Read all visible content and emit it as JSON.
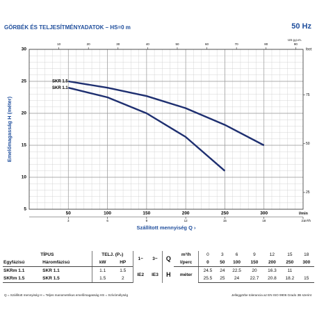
{
  "header": {
    "title": "GÖRBÉK ÉS TELJESÍTMÉNYADATOK – HS=0 m",
    "frequency": "50 Hz"
  },
  "chart_data": {
    "type": "line",
    "y_label": "Emelőmagasság H (méter)",
    "x_label": "Szállított mennyiség Q ›",
    "x_unit": "l/min",
    "xlim": [
      0,
      350
    ],
    "xticks": [
      50,
      100,
      150,
      200,
      250,
      300
    ],
    "ylim": [
      5,
      30
    ],
    "yticks": [
      5,
      10,
      15,
      20,
      25,
      30
    ],
    "y2_label": "feet",
    "y2lim": [
      16.4,
      98.4
    ],
    "y2ticks": [
      25,
      50,
      75
    ],
    "x2_label": "US g.p.m.",
    "x2lim": [
      0,
      92.5
    ],
    "x2ticks": [
      10,
      20,
      30,
      40,
      50,
      60,
      70,
      80,
      90
    ],
    "x3_label": "m³/h",
    "x3lim": [
      0,
      21
    ],
    "x3ticks": [
      3,
      6,
      9,
      12,
      15,
      18,
      21
    ],
    "grid": true,
    "series": [
      {
        "name": "SKR 1.5",
        "color": "#1e2f70",
        "x": [
          50,
          100,
          150,
          200,
          250,
          300
        ],
        "values": [
          25,
          24,
          22.7,
          20.8,
          18.2,
          15
        ]
      },
      {
        "name": "SKR 1.1",
        "color": "#1e2f70",
        "x": [
          50,
          100,
          150,
          200,
          250
        ],
        "values": [
          24,
          22.5,
          20,
          16.3,
          11
        ]
      }
    ]
  },
  "table": {
    "type": "TÍPUS",
    "single_phase": "Egyfázisú",
    "three_phase": "Háromfázisú",
    "power": "TELJ. (P₂)",
    "kw": "kW",
    "hp": "HP",
    "phase1": "1~",
    "phase3": "3~",
    "q": "Q",
    "q_unit1": "m³/h",
    "q_unit2": "l/perc",
    "h": "H",
    "h_unit": "méter",
    "efficiency": [
      "IE2",
      "IE3"
    ],
    "q_m3h": [
      0,
      3,
      6,
      9,
      12,
      15,
      18
    ],
    "q_lpm": [
      0,
      50,
      100,
      150,
      200,
      250,
      300
    ],
    "rows": [
      {
        "single": "SKRm 1.1",
        "three": "SKR 1.1",
        "kw": 1.1,
        "hp": 1.5,
        "h": [
          24.5,
          24,
          22.5,
          20,
          16.3,
          11
        ]
      },
      {
        "single": "SKRm 1.5",
        "three": "SKR 1.5",
        "kw": 1.5,
        "hp": 2,
        "h": [
          25.5,
          25,
          24,
          22.7,
          20.8,
          18.2,
          15
        ]
      }
    ]
  },
  "footer": {
    "left": "Q = Szállított mennyiség   H = Teljes manometrikus emelőmagasság   HS = Szívómélység",
    "right": "Jelleggörbe tolerancia az EN ISO 9906 Grado 3B szerint"
  }
}
